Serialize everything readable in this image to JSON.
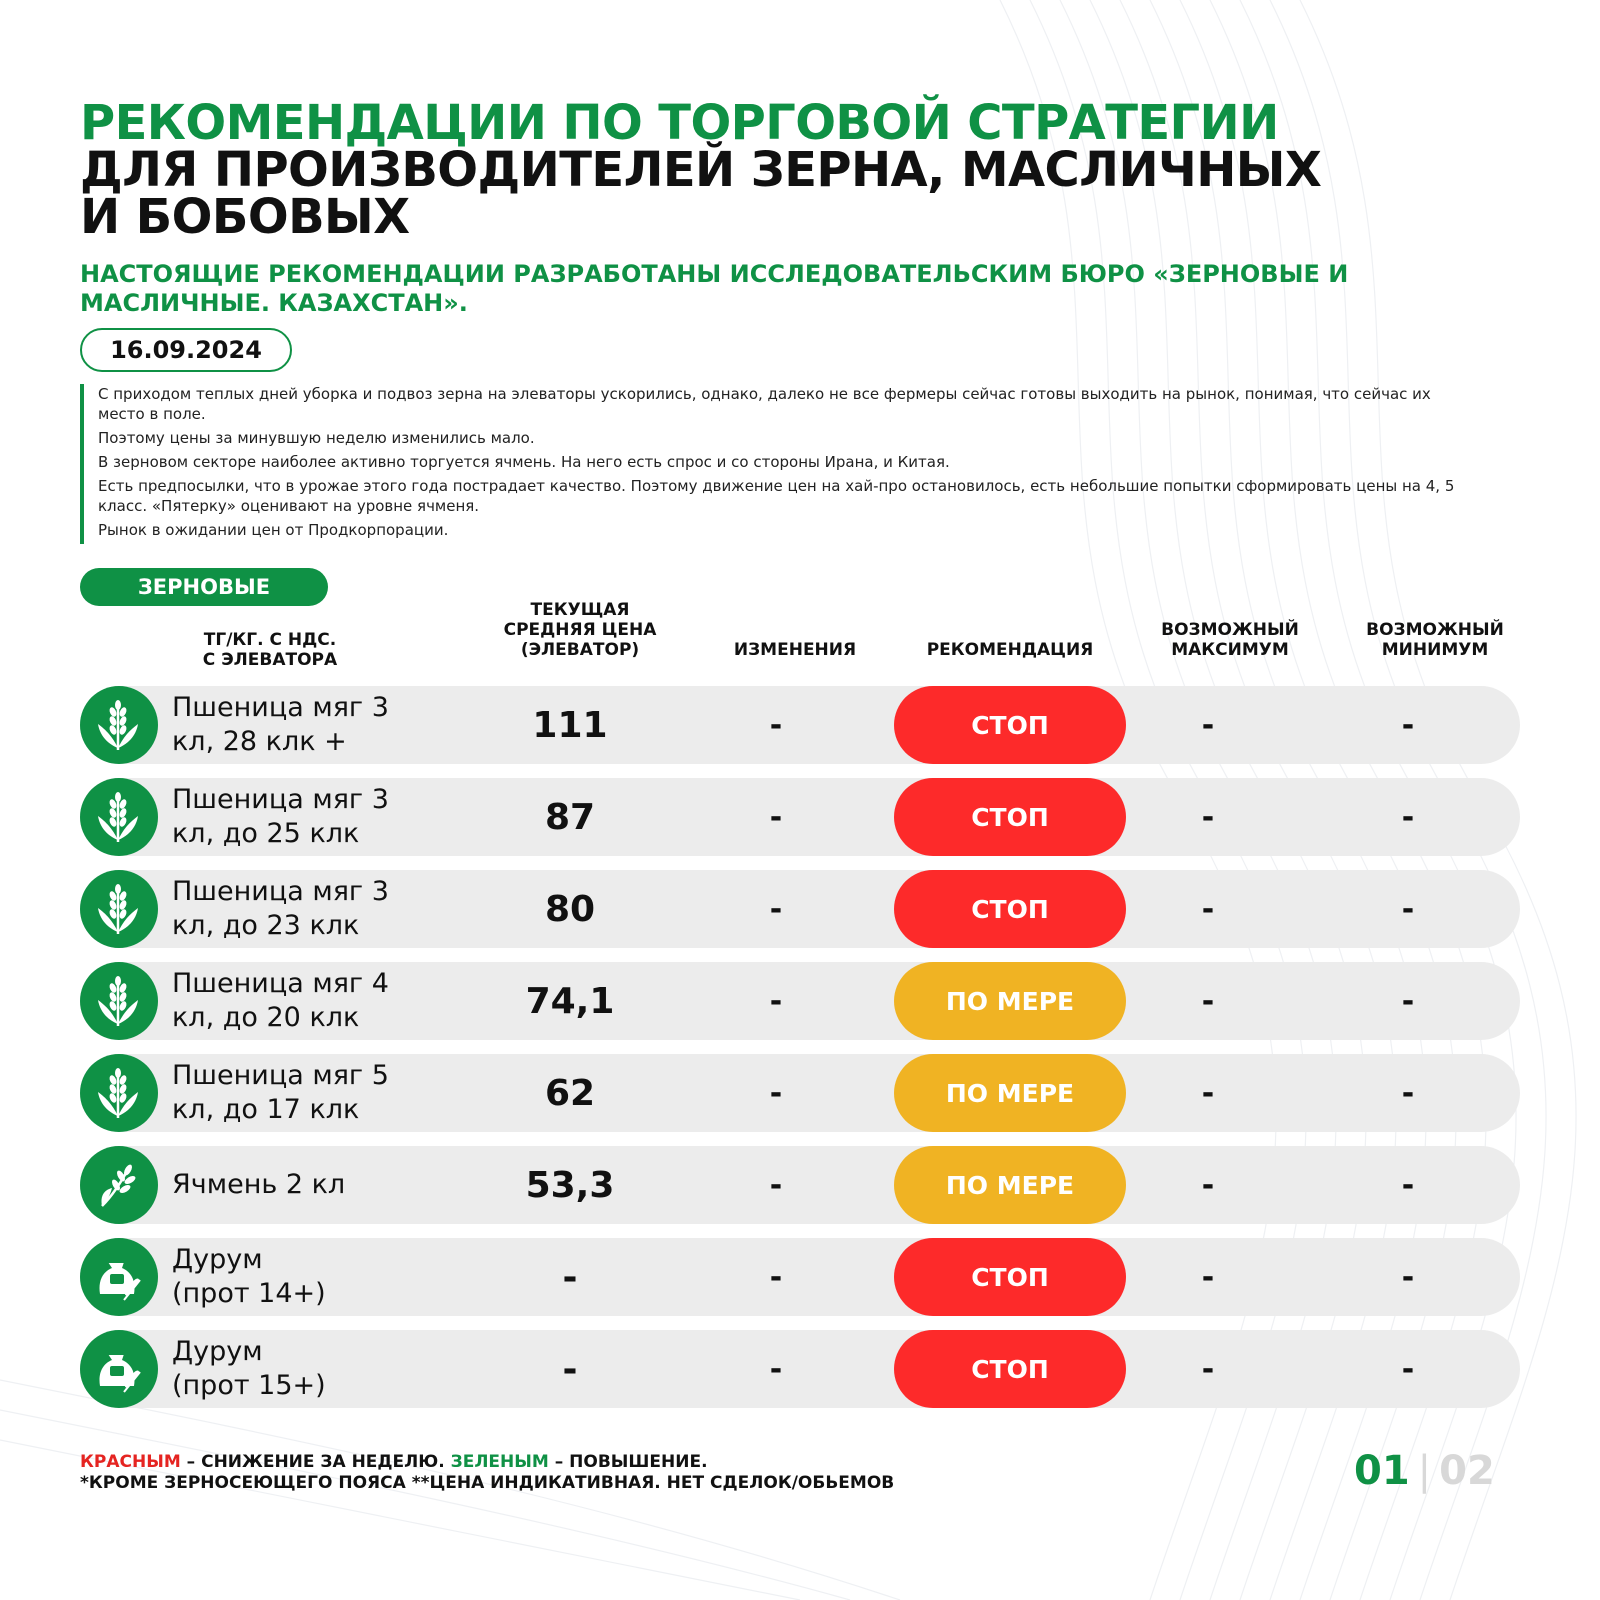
{
  "title": {
    "line1": "РЕКОМЕНДАЦИИ ПО ТОРГОВОЙ СТРАТЕГИИ",
    "line2": "ДЛЯ ПРОИЗВОДИТЕЛЕЙ ЗЕРНА, МАСЛИЧНЫХ",
    "line3": "И БОБОВЫХ"
  },
  "subtitle": "НАСТОЯЩИЕ РЕКОМЕНДАЦИИ РАЗРАБОТАНЫ ИССЛЕДОВАТЕЛЬСКИМ БЮРО «ЗЕРНОВЫЕ И МАСЛИЧНЫЕ. КАЗАХСТАН».",
  "date": "16.09.2024",
  "notes": [
    "С приходом теплых дней уборка и подвоз зерна на элеваторы ускорились, однако, далеко не все фермеры сейчас готовы выходить на рынок, понимая, что сейчас их место в поле.",
    "Поэтому цены за минувшую неделю изменились мало.",
    "В зерновом секторе наиболее активно торгуется ячмень. На него есть спрос и со стороны Ирана, и Китая.",
    "Есть предпосылки, что в урожае этого года пострадает качество. Поэтому движение цен на хай-про остановилось, есть небольшие попытки сформировать цены на 4, 5 класс. «Пятерку» оценивают на уровне ячменя.",
    "Рынок в ожидании цен от Продкорпорации."
  ],
  "section": "ЗЕРНОВЫЕ",
  "headers": {
    "unit": "ТГ/КГ. С НДС.\nС ЭЛЕВАТОРА",
    "price": "ТЕКУЩАЯ\nСРЕДНЯЯ ЦЕНА\n(ЭЛЕВАТОР)",
    "change": "ИЗМЕНЕНИЯ",
    "recommendation": "РЕКОМЕНДАЦИЯ",
    "max": "ВОЗМОЖНЫЙ\nМАКСИМУМ",
    "min": "ВОЗМОЖНЫЙ\nМИНИМУМ"
  },
  "colors": {
    "brand_green": "#0f9145",
    "stop_red": "#fd2a2a",
    "partial_yellow": "#f0b323",
    "row_bg": "#ececec"
  },
  "rows": [
    {
      "icon": "wheat-icon",
      "name": "Пшеница мяг 3\nкл, 28 клк +",
      "price": "111",
      "change": "-",
      "recommendation": "СТОП",
      "rec_type": "stop",
      "max": "-",
      "min": "-"
    },
    {
      "icon": "wheat-icon",
      "name": "Пшеница мяг 3\nкл, до 25 клк",
      "price": "87",
      "change": "-",
      "recommendation": "СТОП",
      "rec_type": "stop",
      "max": "-",
      "min": "-"
    },
    {
      "icon": "wheat-icon",
      "name": "Пшеница мяг 3\nкл, до 23 клк",
      "price": "80",
      "change": "-",
      "recommendation": "СТОП",
      "rec_type": "stop",
      "max": "-",
      "min": "-"
    },
    {
      "icon": "wheat-icon",
      "name": "Пшеница мяг 4\nкл, до 20 клк",
      "price": "74,1",
      "change": "-",
      "recommendation": "ПО МЕРЕ",
      "rec_type": "partial",
      "max": "-",
      "min": "-"
    },
    {
      "icon": "wheat-icon",
      "name": "Пшеница мяг 5\nкл, до 17 клк",
      "price": "62",
      "change": "-",
      "recommendation": "ПО МЕРЕ",
      "rec_type": "partial",
      "max": "-",
      "min": "-"
    },
    {
      "icon": "barley-icon",
      "name": "Ячмень 2 кл",
      "price": "53,3",
      "change": "-",
      "recommendation": "ПО МЕРЕ",
      "rec_type": "partial",
      "max": "-",
      "min": "-"
    },
    {
      "icon": "grain-sack-icon",
      "name": "Дурум\n(прот 14+)",
      "price": "-",
      "change": "-",
      "recommendation": "СТОП",
      "rec_type": "stop",
      "max": "-",
      "min": "-"
    },
    {
      "icon": "grain-sack-icon",
      "name": "Дурум\n(прот 15+)",
      "price": "-",
      "change": "-",
      "recommendation": "СТОП",
      "rec_type": "stop",
      "max": "-",
      "min": "-"
    }
  ],
  "footer": {
    "red_word": "КРАСНЫМ",
    "red_text": " – СНИЖЕНИЕ ЗА НЕДЕЛЮ. ",
    "green_word": "ЗЕЛЕНЫМ",
    "green_text": " – ПОВЫШЕНИЕ.",
    "line2": "*КРОМЕ ЗЕРНОСЕЮЩЕГО ПОЯСА **ЦЕНА ИНДИКАТИВНАЯ. НЕТ СДЕЛОК/ОБЬЕМОВ"
  },
  "pager": {
    "current": "01",
    "separator": "|",
    "total": "02"
  }
}
